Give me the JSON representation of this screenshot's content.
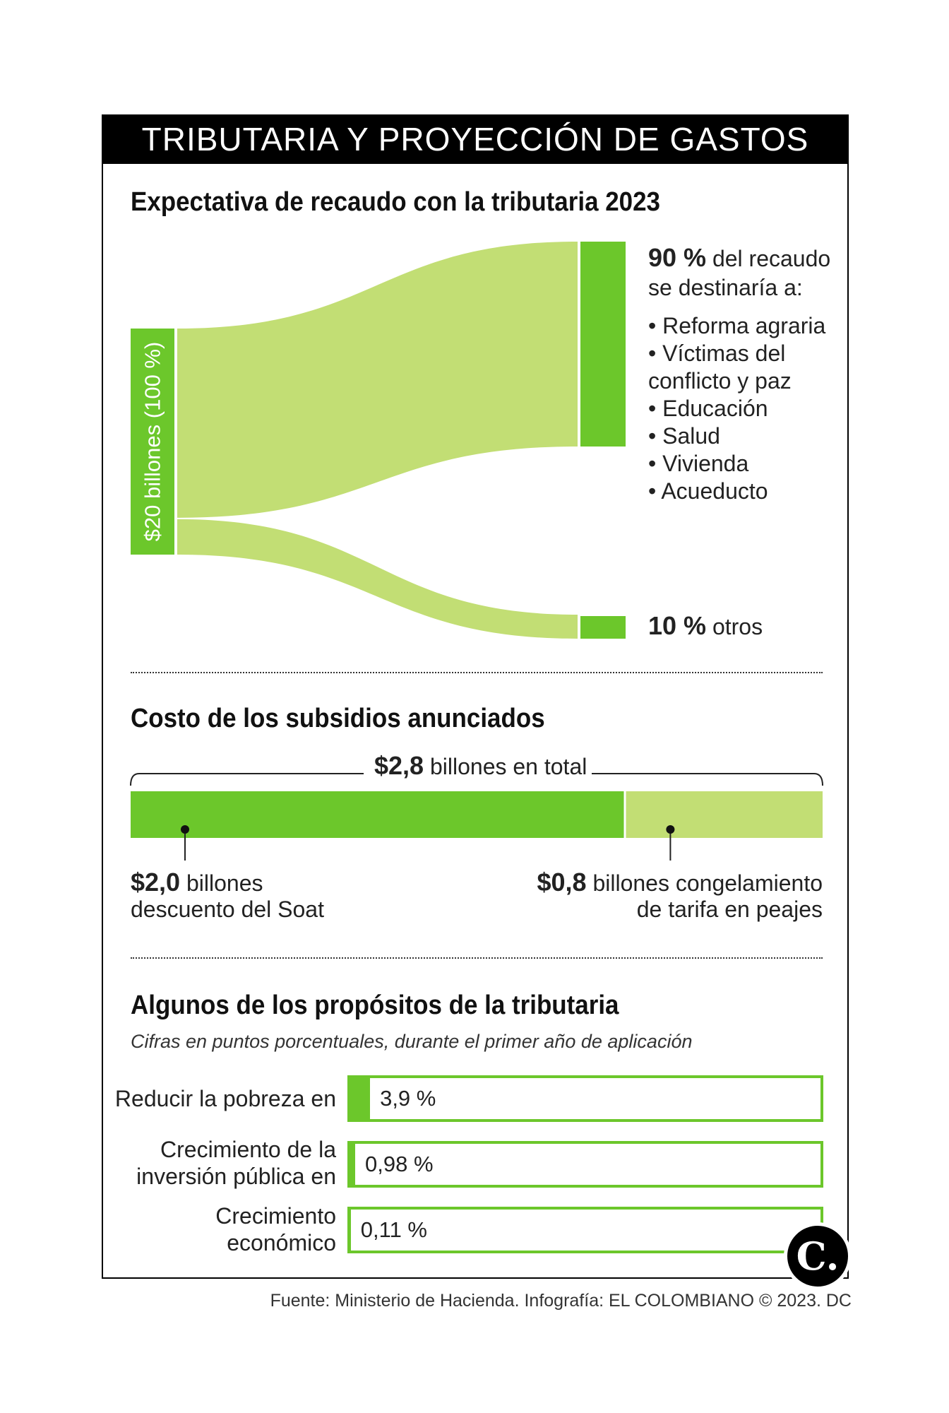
{
  "title": "TRIBUTARIA Y PROYECCIÓN DE GASTOS",
  "colors": {
    "dark_green": "#6cc72b",
    "light_green": "#c2de74",
    "black": "#000000"
  },
  "section1": {
    "heading": "Expectativa de recaudo con la tributaria 2023",
    "source_label": "$20 billones (100 %)",
    "top_pct": "90 %",
    "top_text_a": "del recaudo",
    "top_text_b": "se destinaría a:",
    "items": [
      "Reforma agraria",
      "Víctimas del",
      "conflicto y paz",
      "Educación",
      "Salud",
      "Vivienda",
      "Acueducto"
    ],
    "bottom_pct": "10 %",
    "bottom_text": "otros"
  },
  "section2": {
    "heading": "Costo de los subsidios anunciados",
    "total_bold": "$2,8",
    "total_text": "billones en total",
    "left_bold": "$2,0",
    "left_text_a": "billones",
    "left_text_b": "descuento del Soat",
    "right_bold": "$0,8",
    "right_text_a": "billones congelamiento",
    "right_text_b": "de tarifa en peajes"
  },
  "section3": {
    "heading": "Algunos de los propósitos de la tributaria",
    "subtitle": "Cifras en puntos porcentuales, durante el primer año de aplicación",
    "rows": [
      {
        "label_a": "Reducir la pobreza en",
        "label_b": "",
        "value_text": "3,9 %"
      },
      {
        "label_a": "Crecimiento de la",
        "label_b": "inversión pública en",
        "value_text": "0,98 %"
      },
      {
        "label_a": "Crecimiento",
        "label_b": "económico",
        "value_text": "0,11 %"
      }
    ]
  },
  "logo_letter": "C.",
  "footer": "Fuente: Ministerio de Hacienda. Infografía: EL COLOMBIANO © 2023. DC",
  "chart_data": [
    {
      "type": "sankey",
      "title": "Expectativa de recaudo con la tributaria 2023",
      "source": {
        "name": "$20 billones",
        "value": 20,
        "percent": 100
      },
      "targets": [
        {
          "name": "Reforma agraria, Víctimas del conflicto y paz, Educación, Salud, Vivienda, Acueducto",
          "percent": 90
        },
        {
          "name": "otros",
          "percent": 10
        }
      ]
    },
    {
      "type": "bar",
      "orientation": "horizontal-stacked",
      "title": "Costo de los subsidios anunciados",
      "unit": "billones",
      "total": 2.8,
      "segments": [
        {
          "name": "descuento del Soat",
          "value": 2.0
        },
        {
          "name": "congelamiento de tarifa en peajes",
          "value": 0.8
        }
      ]
    },
    {
      "type": "bar",
      "orientation": "horizontal",
      "title": "Algunos de los propósitos de la tributaria",
      "unit": "puntos porcentuales",
      "categories": [
        "Reducir la pobreza en",
        "Crecimiento de la inversión pública en",
        "Crecimiento económico"
      ],
      "values": [
        3.9,
        0.98,
        0.11
      ]
    }
  ]
}
